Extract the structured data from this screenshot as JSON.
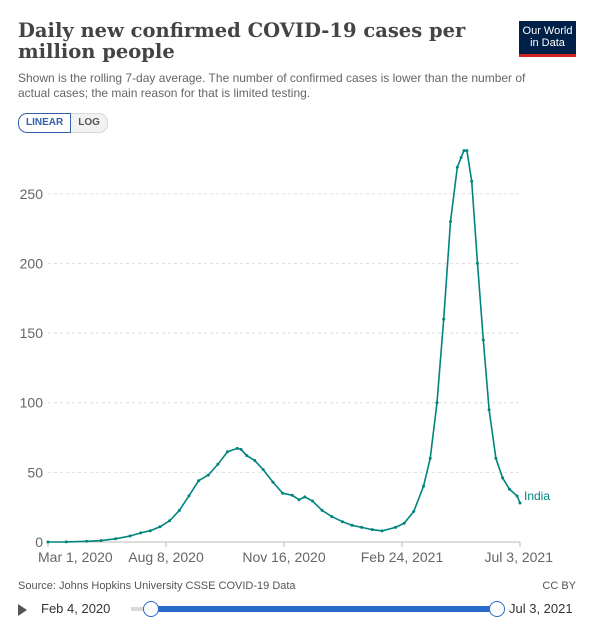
{
  "header": {
    "title": "Daily new confirmed COVID-19 cases per million people",
    "subtitle": "Shown is the rolling 7-day average. The number of confirmed cases is lower than the number of actual cases; the main reason for that is limited testing.",
    "logo_line1": "Our World",
    "logo_line2": "in Data"
  },
  "toggle": {
    "linear_label": "LINEAR",
    "log_label": "LOG",
    "selected": "linear"
  },
  "footer": {
    "source": "Source: Johns Hopkins University CSSE COVID-19 Data",
    "license": "CC BY"
  },
  "timeline": {
    "start_label": "Feb 4, 2020",
    "end_label": "Jul 3, 2021"
  },
  "colors": {
    "series": "#00847e",
    "grid": "#dddddd",
    "axis_text": "#666666",
    "slider": "#2a6ccc",
    "logo_bg": "#002147",
    "logo_accent": "#ce261e"
  },
  "chart_data": {
    "type": "line",
    "title": "Daily new confirmed COVID-19 cases per million people",
    "xlabel": "",
    "ylabel": "",
    "x_tick_labels": [
      "Mar 1, 2020",
      "Aug 8, 2020",
      "Nov 16, 2020",
      "Feb 24, 2021",
      "Jul 3, 2021"
    ],
    "y_ticks": [
      0,
      50,
      100,
      150,
      200,
      250
    ],
    "ylim": [
      0,
      285
    ],
    "xlim": [
      "2020-03-01",
      "2021-07-03"
    ],
    "grid": "horizontal dashed",
    "series": [
      {
        "name": "India",
        "label_position": "end",
        "x": [
          "2020-03-01",
          "2020-03-20",
          "2020-04-10",
          "2020-04-25",
          "2020-05-10",
          "2020-05-25",
          "2020-06-05",
          "2020-06-15",
          "2020-06-25",
          "2020-07-05",
          "2020-07-15",
          "2020-07-25",
          "2020-08-04",
          "2020-08-14",
          "2020-08-24",
          "2020-09-03",
          "2020-09-13",
          "2020-09-17",
          "2020-09-23",
          "2020-10-01",
          "2020-10-10",
          "2020-10-20",
          "2020-10-30",
          "2020-11-09",
          "2020-11-16",
          "2020-11-22",
          "2020-11-30",
          "2020-12-10",
          "2020-12-20",
          "2020-12-31",
          "2021-01-10",
          "2021-01-20",
          "2021-01-31",
          "2021-02-10",
          "2021-02-24",
          "2021-03-05",
          "2021-03-15",
          "2021-03-25",
          "2021-04-01",
          "2021-04-08",
          "2021-04-15",
          "2021-04-22",
          "2021-04-29",
          "2021-05-03",
          "2021-05-06",
          "2021-05-09",
          "2021-05-14",
          "2021-05-20",
          "2021-05-26",
          "2021-06-01",
          "2021-06-08",
          "2021-06-15",
          "2021-06-22",
          "2021-06-30",
          "2021-07-03"
        ],
        "y": [
          0,
          0.05,
          0.5,
          1.0,
          2.3,
          4.3,
          6.5,
          8.1,
          10.9,
          15.2,
          22.6,
          33.1,
          44.0,
          48.0,
          55.8,
          64.8,
          67.2,
          66.5,
          62.0,
          58.6,
          52.0,
          43.0,
          35.0,
          33.5,
          30.4,
          32.4,
          29.4,
          22.7,
          18.2,
          14.6,
          12.0,
          10.5,
          8.9,
          8.0,
          10.5,
          13.5,
          22.0,
          40.0,
          60.0,
          100.0,
          160.0,
          230.0,
          269.0,
          276.0,
          281.0,
          281.0,
          259.0,
          200.0,
          145.0,
          95.0,
          60.0,
          46.0,
          38.0,
          33.0,
          28.0
        ]
      }
    ]
  }
}
